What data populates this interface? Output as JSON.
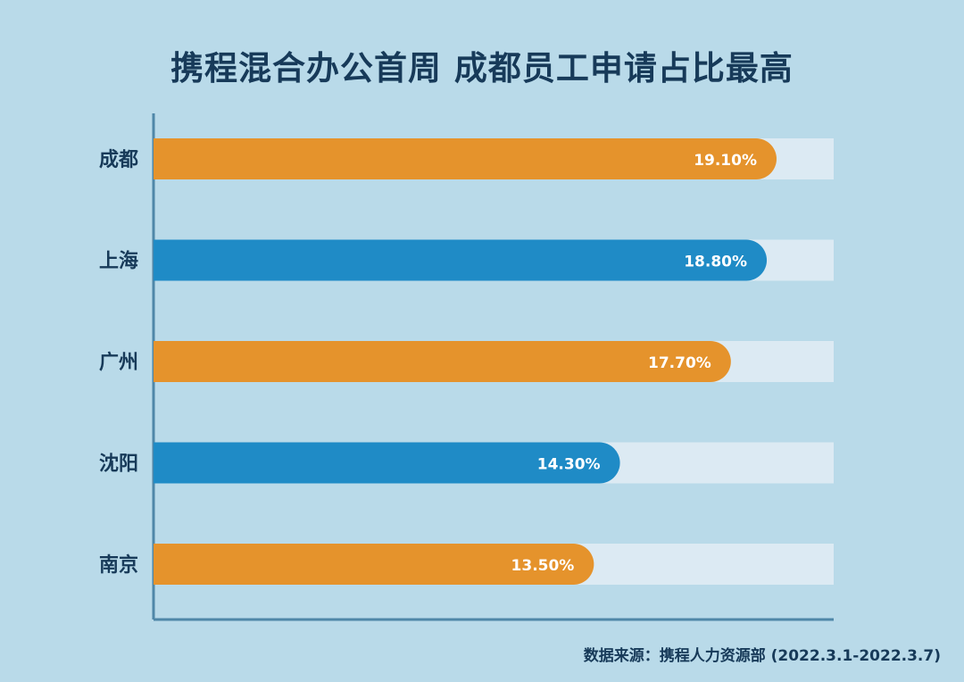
{
  "chart_data": {
    "type": "bar",
    "orientation": "horizontal",
    "title": "携程混合办公首周  成都员工申请占比最高",
    "source": "数据来源：携程人力资源部 (2022.3.1-2022.3.7)",
    "categories": [
      "成都",
      "上海",
      "广州",
      "沈阳",
      "南京"
    ],
    "values": [
      19.1,
      18.8,
      17.7,
      14.3,
      13.5
    ],
    "value_labels": [
      "19.10%",
      "18.80%",
      "17.70%",
      "14.30%",
      "13.50%"
    ],
    "bar_colors": [
      "#e5932c",
      "#1f8bc6",
      "#e5932c",
      "#1f8bc6",
      "#e5932c"
    ],
    "track_color": "#dceaf3",
    "background_color": "#b9dae9",
    "grid": false,
    "legend": "none"
  }
}
